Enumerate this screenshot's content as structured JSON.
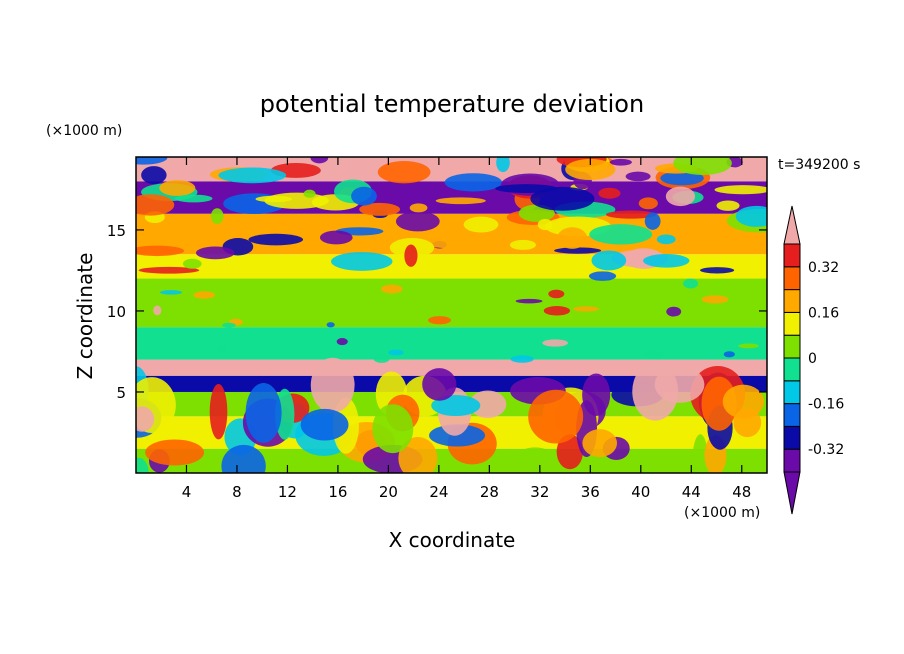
{
  "chart_data": {
    "type": "heatmap",
    "title": "potential temperature deviation",
    "xlabel": "X coordinate",
    "ylabel": "Z coordinate",
    "x_unit": "(×1000 m)",
    "y_unit": "(×1000 m)",
    "time_label": "t=349200 s",
    "xlim": [
      0,
      50
    ],
    "ylim": [
      0,
      19.5
    ],
    "x_ticks": [
      4,
      8,
      12,
      16,
      20,
      24,
      28,
      32,
      36,
      40,
      44,
      48
    ],
    "y_ticks": [
      5,
      10,
      15
    ],
    "colorbar": {
      "levels": [
        -0.4,
        -0.32,
        -0.24,
        -0.16,
        -0.08,
        0,
        0.08,
        0.16,
        0.24,
        0.32,
        0.4
      ],
      "labels": [
        "-0.32",
        "-0.16",
        "0",
        "0.16",
        "0.32"
      ],
      "label_values": [
        -0.32,
        -0.16,
        0,
        0.16,
        0.32
      ],
      "colors": [
        "#6a0aa8",
        "#0a0aa8",
        "#0a64e6",
        "#00c8e6",
        "#10e090",
        "#7ee000",
        "#f0f000",
        "#ffa800",
        "#ff6400",
        "#e61e1e",
        "#f0a8a8"
      ],
      "extend": "both"
    },
    "bands": [
      {
        "z": [
          0,
          1.5
        ],
        "value": 0.05
      },
      {
        "z": [
          1.5,
          3.5
        ],
        "value": 0.1
      },
      {
        "z": [
          3.5,
          5.0
        ],
        "value": 0.0
      },
      {
        "z": [
          5.0,
          6.0
        ],
        "value": -0.3
      },
      {
        "z": [
          6.0,
          7.0
        ],
        "value": 0.45
      },
      {
        "z": [
          7.0,
          9.0
        ],
        "value": -0.05
      },
      {
        "z": [
          9.0,
          12.0
        ],
        "value": 0.02
      },
      {
        "z": [
          12.0,
          13.5
        ],
        "value": 0.1
      },
      {
        "z": [
          13.5,
          16.0
        ],
        "value": 0.2
      },
      {
        "z": [
          16.0,
          18.0
        ],
        "value": -0.4
      },
      {
        "z": [
          18.0,
          19.5
        ],
        "value": 0.45
      }
    ]
  }
}
